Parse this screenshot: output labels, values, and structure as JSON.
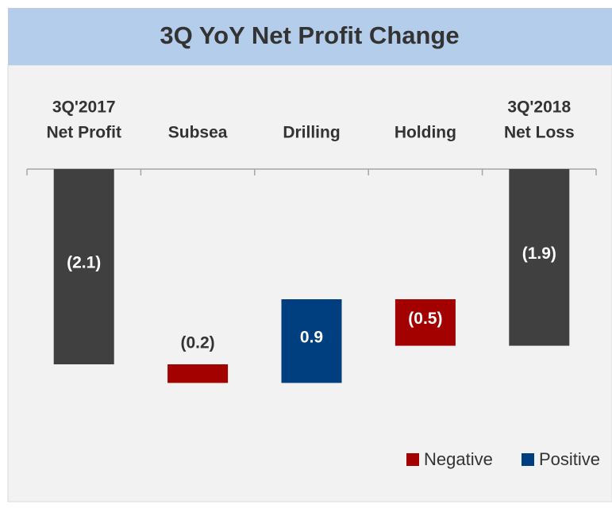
{
  "chart_data": {
    "type": "waterfall",
    "title": "3Q YoY Net Profit Change",
    "categories": [
      [
        "3Q'2017",
        "Net Profit"
      ],
      [
        "Subsea"
      ],
      [
        "Drilling"
      ],
      [
        "Holding"
      ],
      [
        "3Q'2018",
        "Net Loss"
      ]
    ],
    "values": [
      -2.1,
      -0.2,
      0.9,
      -0.5,
      -1.9
    ],
    "value_labels": [
      "(2.1)",
      "(0.2)",
      "0.9",
      "(0.5)",
      "(1.9)"
    ],
    "totals": [
      true,
      false,
      false,
      false,
      true
    ],
    "total_color": "#404040",
    "series": [
      {
        "name": "Negative",
        "color": "#a30000"
      },
      {
        "name": "Positive",
        "color": "#003f7f"
      }
    ],
    "ylim": [
      -2.8,
      0
    ]
  }
}
